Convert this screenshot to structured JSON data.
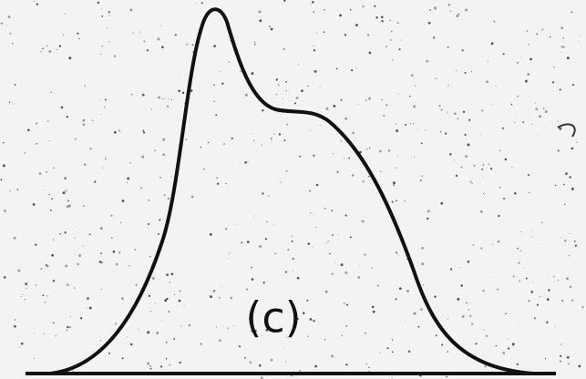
{
  "label": "(c)"
}
